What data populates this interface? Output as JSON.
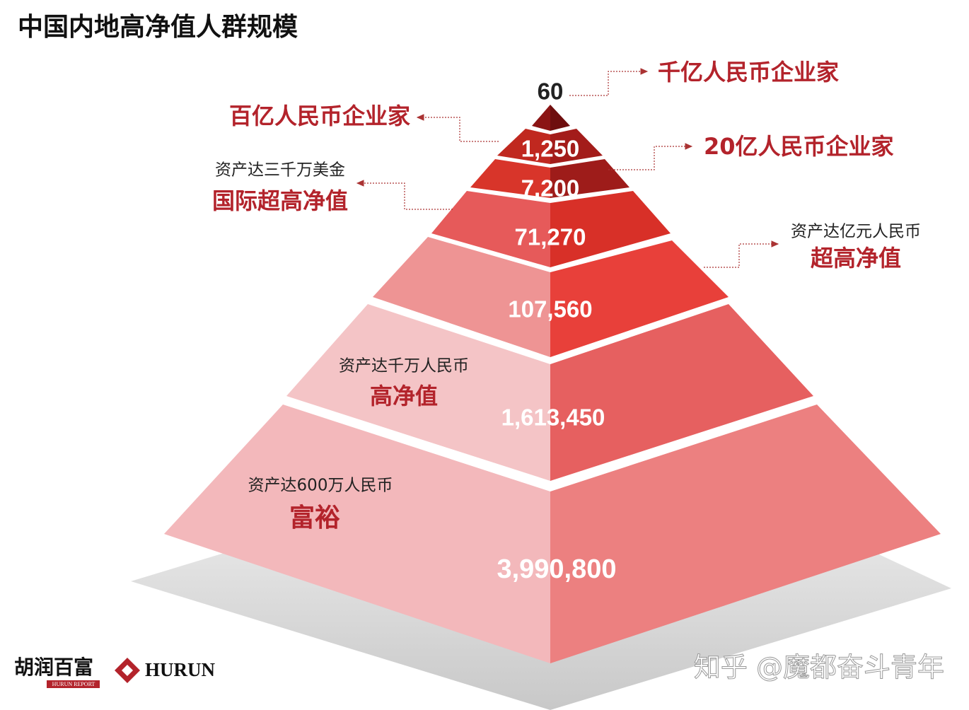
{
  "title": "中国内地高净值人群规模",
  "tiers": [
    {
      "value": "60",
      "label": "千亿人民币企业家"
    },
    {
      "value": "1,250",
      "label": "百亿人民币企业家"
    },
    {
      "value": "7,200",
      "label": "20亿人民币企业家"
    },
    {
      "value": "71,270",
      "caption": "资产达三千万美金",
      "label": "国际超高净值"
    },
    {
      "value": "107,560",
      "caption": "资产达亿元人民币",
      "label": "超高净值"
    },
    {
      "value": "1,613,450",
      "caption": "资产达千万人民币",
      "label": "高净值"
    },
    {
      "value": "3,990,800",
      "caption": "资产达600万人民币",
      "label": "富裕"
    }
  ],
  "logos": {
    "cn": "胡润百富",
    "sub": "HURUN REPORT",
    "en": "HURUN"
  },
  "watermark": "知乎 @魔都奋斗青年"
}
